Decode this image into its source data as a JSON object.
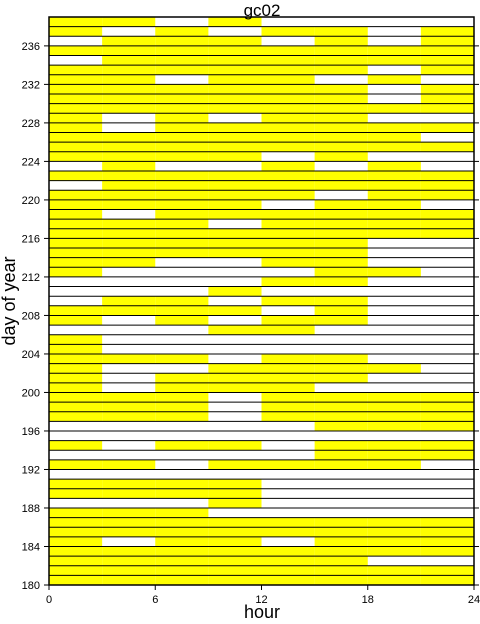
{
  "chart_data": {
    "type": "heatmap",
    "title": "gc02",
    "xlabel": "hour",
    "ylabel": "day of year",
    "xlim": [
      0,
      24
    ],
    "ylim": [
      180,
      239
    ],
    "x_ticks": [
      0,
      6,
      12,
      18,
      24
    ],
    "y_ticks": [
      180,
      184,
      188,
      192,
      196,
      200,
      204,
      208,
      212,
      216,
      220,
      224,
      228,
      232,
      236
    ],
    "bin_hours": 3,
    "colors": {
      "covered": "#ffff00",
      "gap": "#ffffff",
      "grid": "#000000"
    },
    "days": [
      {
        "day": 180,
        "hours": [
          0,
          3,
          6,
          9,
          12,
          15,
          18,
          21
        ]
      },
      {
        "day": 181,
        "hours": [
          0,
          3,
          6,
          9,
          12,
          15,
          18,
          21
        ]
      },
      {
        "day": 182,
        "hours": [
          0,
          3,
          6,
          9,
          12,
          15
        ]
      },
      {
        "day": 183,
        "hours": [
          0,
          3,
          6,
          9,
          12,
          15,
          18,
          21
        ]
      },
      {
        "day": 184,
        "hours": [
          0,
          6,
          9,
          15,
          18,
          21
        ]
      },
      {
        "day": 185,
        "hours": [
          0,
          3,
          6,
          9,
          12,
          15,
          18,
          21
        ]
      },
      {
        "day": 186,
        "hours": [
          0,
          3,
          6,
          9,
          12,
          15,
          18,
          21
        ]
      },
      {
        "day": 187,
        "hours": [
          0,
          3,
          6
        ]
      },
      {
        "day": 188,
        "hours": [
          9
        ]
      },
      {
        "day": 189,
        "hours": [
          0,
          3,
          6,
          9
        ]
      },
      {
        "day": 190,
        "hours": [
          0,
          3,
          6,
          9
        ]
      },
      {
        "day": 191,
        "hours": []
      },
      {
        "day": 192,
        "hours": [
          0,
          3,
          9,
          12,
          15,
          18
        ]
      },
      {
        "day": 193,
        "hours": [
          15,
          18,
          21
        ]
      },
      {
        "day": 194,
        "hours": [
          0,
          6,
          9,
          15,
          18,
          21
        ]
      },
      {
        "day": 195,
        "hours": []
      },
      {
        "day": 196,
        "hours": [
          15,
          18,
          21
        ]
      },
      {
        "day": 197,
        "hours": [
          0,
          3,
          6,
          12,
          15,
          18,
          21
        ]
      },
      {
        "day": 198,
        "hours": [
          0,
          3,
          6,
          12,
          15,
          18,
          21
        ]
      },
      {
        "day": 199,
        "hours": [
          0,
          3,
          6,
          12,
          15,
          18,
          21
        ]
      },
      {
        "day": 200,
        "hours": [
          0,
          6,
          9,
          12
        ]
      },
      {
        "day": 201,
        "hours": [
          0,
          6,
          9,
          12,
          15
        ]
      },
      {
        "day": 202,
        "hours": [
          0,
          9,
          12,
          15,
          18
        ]
      },
      {
        "day": 203,
        "hours": [
          0,
          3,
          6,
          12,
          15
        ]
      },
      {
        "day": 204,
        "hours": [
          0
        ]
      },
      {
        "day": 205,
        "hours": [
          0
        ]
      },
      {
        "day": 206,
        "hours": [
          9,
          12
        ]
      },
      {
        "day": 207,
        "hours": [
          0,
          6,
          12,
          15
        ]
      },
      {
        "day": 208,
        "hours": [
          0,
          3,
          6,
          9,
          15
        ]
      },
      {
        "day": 209,
        "hours": [
          3,
          6,
          12,
          15
        ]
      },
      {
        "day": 210,
        "hours": [
          9
        ]
      },
      {
        "day": 211,
        "hours": [
          12,
          15
        ]
      },
      {
        "day": 212,
        "hours": [
          0,
          15,
          18
        ]
      },
      {
        "day": 213,
        "hours": [
          0,
          3,
          12,
          15
        ]
      },
      {
        "day": 214,
        "hours": [
          0,
          3,
          6,
          9,
          12,
          15
        ]
      },
      {
        "day": 215,
        "hours": [
          0,
          3,
          6,
          9,
          12,
          15
        ]
      },
      {
        "day": 216,
        "hours": [
          0,
          3,
          6,
          9,
          12,
          15,
          18,
          21
        ]
      },
      {
        "day": 217,
        "hours": [
          0,
          3,
          6,
          12,
          15,
          18,
          21
        ]
      },
      {
        "day": 218,
        "hours": [
          0,
          6,
          9,
          12,
          15,
          18,
          21
        ]
      },
      {
        "day": 219,
        "hours": [
          0,
          3,
          6,
          9,
          15,
          18
        ]
      },
      {
        "day": 220,
        "hours": [
          0,
          3,
          6,
          9,
          12,
          18,
          21
        ]
      },
      {
        "day": 221,
        "hours": [
          3,
          6,
          9,
          12,
          15,
          18,
          21
        ]
      },
      {
        "day": 222,
        "hours": [
          0,
          3,
          6,
          9,
          12,
          15,
          18,
          21
        ]
      },
      {
        "day": 223,
        "hours": [
          3,
          12,
          18
        ]
      },
      {
        "day": 224,
        "hours": [
          0,
          3,
          6,
          9,
          15
        ]
      },
      {
        "day": 225,
        "hours": [
          0,
          3,
          6,
          9,
          12,
          15,
          18,
          21
        ]
      },
      {
        "day": 226,
        "hours": [
          0,
          3,
          6,
          9,
          12,
          15,
          18
        ]
      },
      {
        "day": 227,
        "hours": [
          0,
          6,
          9,
          12,
          15,
          18,
          21
        ]
      },
      {
        "day": 228,
        "hours": [
          0,
          6,
          12,
          15
        ]
      },
      {
        "day": 229,
        "hours": [
          0,
          3,
          6,
          9,
          12,
          15,
          18,
          21
        ]
      },
      {
        "day": 230,
        "hours": [
          0,
          3,
          6,
          9,
          12,
          15,
          21
        ]
      },
      {
        "day": 231,
        "hours": [
          0,
          3,
          6,
          9,
          12,
          15,
          21
        ]
      },
      {
        "day": 232,
        "hours": [
          0,
          3,
          9,
          12,
          18
        ]
      },
      {
        "day": 233,
        "hours": [
          0,
          3,
          6,
          9,
          12,
          15,
          21
        ]
      },
      {
        "day": 234,
        "hours": [
          3,
          6,
          9,
          12,
          15,
          18,
          21
        ]
      },
      {
        "day": 235,
        "hours": [
          0,
          3,
          6,
          9,
          12,
          15,
          18,
          21
        ]
      },
      {
        "day": 236,
        "hours": [
          3,
          6,
          9,
          15,
          21
        ]
      },
      {
        "day": 237,
        "hours": [
          0,
          6,
          12,
          15,
          21
        ]
      },
      {
        "day": 238,
        "hours": [
          0,
          3,
          9
        ]
      }
    ]
  }
}
